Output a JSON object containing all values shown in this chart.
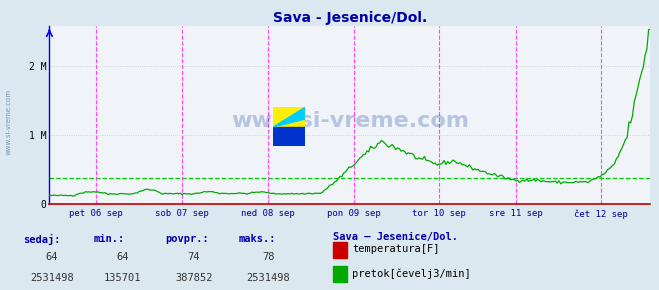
{
  "title": "Sava - Jesenice/Dol.",
  "bg_color": "#dce8f0",
  "plot_bg_color": "#f0f4f8",
  "grid_color": "#c8c8c8",
  "grid_style": "dotted",
  "y_max": 2531498,
  "y_min": 0,
  "y_ticks": [
    0,
    1000000,
    2000000
  ],
  "y_tick_labels": [
    "0",
    "1 M",
    "2 M"
  ],
  "avg_line_value": 387852,
  "temp_color": "#cc0000",
  "flow_color": "#00aa00",
  "vline_color": "#ff44ff",
  "hline_color": "#ff8888",
  "xlabel_color": "#000099",
  "title_color": "#0000aa",
  "watermark": "www.si-vreme.com",
  "watermark_color": "#3355aa",
  "x_labels": [
    "pet 06 sep",
    "sob 07 sep",
    "ned 08 sep",
    "pon 09 sep",
    "tor 10 sep",
    "sre 11 sep",
    "čet 12 sep"
  ],
  "vline_fracs": [
    0.077,
    0.22,
    0.363,
    0.506,
    0.648,
    0.776,
    0.918
  ],
  "n_points": 336,
  "temp_min": 64,
  "temp_max": 78,
  "temp_avg": 74,
  "temp_current": 64,
  "flow_min": 135701,
  "flow_max": 2531498,
  "flow_avg": 387852,
  "flow_current": 2531498,
  "legend_title": "Sava – Jesenice/Dol.",
  "legend_label1": "temperatura[F]",
  "legend_label2": "pretok[čevelj3/min]",
  "footer_labels": [
    "sedaj:",
    "min.:",
    "povpr.:",
    "maks.:"
  ],
  "footer_color": "#0000aa",
  "axis_color": "#0000ff",
  "arrow_color": "#cc0000",
  "left_text": "www.si-vreme.com"
}
